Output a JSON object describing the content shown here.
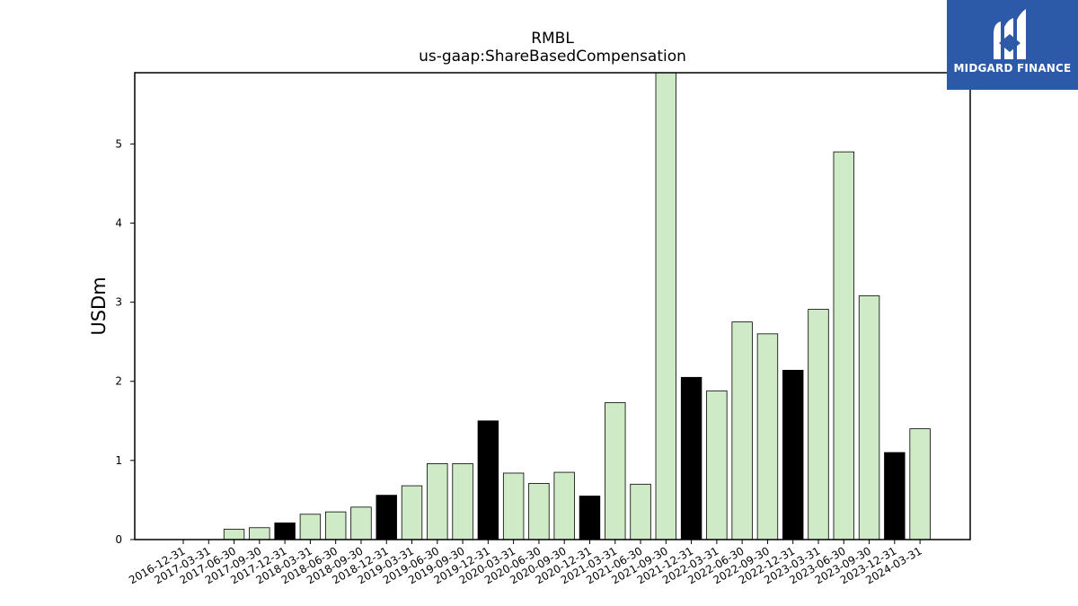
{
  "chart_data": {
    "type": "bar",
    "title": "RMBL",
    "subtitle": "us-gaap:ShareBasedCompensation",
    "xlabel": "",
    "ylabel": "USDm",
    "ylim": [
      0,
      5.9
    ],
    "yticks": [
      0,
      1,
      2,
      3,
      4,
      5
    ],
    "grid": false,
    "categories": [
      "2016-12-31",
      "2017-03-31",
      "2017-06-30",
      "2017-09-30",
      "2017-12-31",
      "2018-03-31",
      "2018-06-30",
      "2018-09-30",
      "2018-12-31",
      "2019-03-31",
      "2019-06-30",
      "2019-09-30",
      "2019-12-31",
      "2020-03-31",
      "2020-06-30",
      "2020-09-30",
      "2020-12-31",
      "2021-03-31",
      "2021-06-30",
      "2021-09-30",
      "2021-12-31",
      "2022-03-31",
      "2022-06-30",
      "2022-09-30",
      "2022-12-31",
      "2023-03-31",
      "2023-06-30",
      "2023-09-30",
      "2023-12-31",
      "2024-03-31"
    ],
    "values": [
      0,
      0,
      0.13,
      0.15,
      0.21,
      0.32,
      0.35,
      0.41,
      0.56,
      0.68,
      0.96,
      0.96,
      1.5,
      0.84,
      0.71,
      0.85,
      0.55,
      1.73,
      0.7,
      5.9,
      2.05,
      1.88,
      2.75,
      2.6,
      2.14,
      2.91,
      4.9,
      3.08,
      1.1,
      1.4
    ],
    "highlight": [
      false,
      false,
      false,
      false,
      true,
      false,
      false,
      false,
      true,
      false,
      false,
      false,
      true,
      false,
      false,
      false,
      true,
      false,
      false,
      false,
      true,
      false,
      false,
      false,
      true,
      false,
      false,
      false,
      true,
      false
    ],
    "colors": {
      "bar": "#cfeac6",
      "highlight": "#000000",
      "edge": "#000000"
    }
  },
  "logo": {
    "text": "MIDGARD FINANCE"
  }
}
